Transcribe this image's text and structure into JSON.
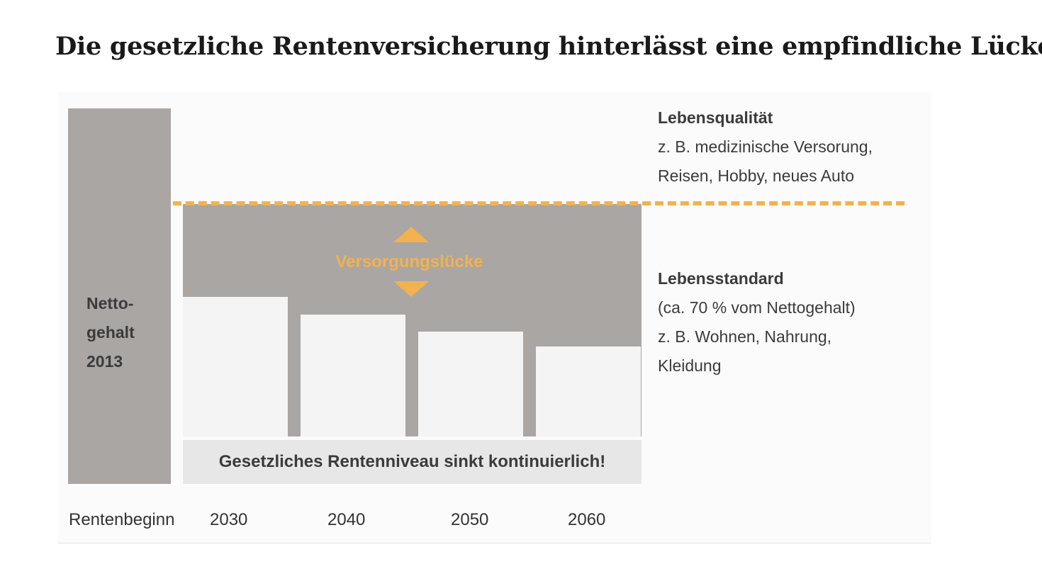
{
  "title": "Die gesetzliche Rentenversicherung hinterlässt eine empfindliche Lücke",
  "netto_label": "Netto-\ngehalt\n2013",
  "gap_label": "Versorgungslücke",
  "caption": "Gesetzliches Rentenniveau sinkt kontinuierlich!",
  "lebensqualitaet": {
    "heading": "Lebensqualität",
    "lines": [
      "z. B. medizinische Versorung,",
      "Reisen, Hobby, neues Auto"
    ]
  },
  "lebensstandard": {
    "heading": "Lebensstandard",
    "lines": [
      "(ca. 70 % vom Nettogehalt)",
      "z. B. Wohnen, Nahrung,",
      "Kleidung"
    ]
  },
  "x_axis_label": "Rentenbeginn",
  "colors": {
    "bar_gray": "#a9a6a4",
    "pension_white": "#f4f4f4",
    "accent_orange": "#f3b24f",
    "caption_bg": "#e7e7e7",
    "text": "#3b3b3b"
  },
  "chart_data": {
    "type": "bar",
    "title": "Die gesetzliche Rentenversicherung hinterlässt eine empfindliche Lücke",
    "xlabel": "Rentenbeginn",
    "ylabel": "",
    "ylim": [
      0,
      100
    ],
    "grid": false,
    "reference_bar": {
      "label": "Netto-\ngehalt\n2013",
      "value": 100
    },
    "reference_line": {
      "label": "Lebensstandard (ca. 70 % vom Nettogehalt)",
      "value": 70,
      "style": "dashed"
    },
    "categories": [
      "2030",
      "2040",
      "2050",
      "2060"
    ],
    "values": [
      48,
      42,
      36,
      31
    ]
  }
}
